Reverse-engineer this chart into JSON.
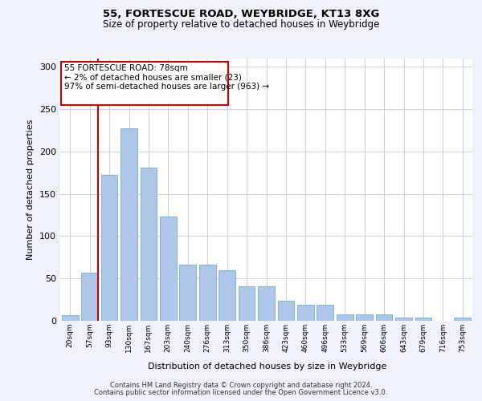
{
  "title1": "55, FORTESCUE ROAD, WEYBRIDGE, KT13 8XG",
  "title2": "Size of property relative to detached houses in Weybridge",
  "xlabel": "Distribution of detached houses by size in Weybridge",
  "ylabel": "Number of detached properties",
  "categories": [
    "20sqm",
    "57sqm",
    "93sqm",
    "130sqm",
    "167sqm",
    "203sqm",
    "240sqm",
    "276sqm",
    "313sqm",
    "350sqm",
    "386sqm",
    "423sqm",
    "460sqm",
    "496sqm",
    "533sqm",
    "569sqm",
    "606sqm",
    "643sqm",
    "679sqm",
    "716sqm",
    "753sqm"
  ],
  "bar_heights": [
    7,
    57,
    172,
    227,
    181,
    123,
    66,
    66,
    60,
    41,
    41,
    24,
    19,
    19,
    8,
    8,
    8,
    4,
    4,
    0,
    4
  ],
  "bar_color": "#aec6e8",
  "bar_edge_color": "#6baed6",
  "vline_x_idx": 1,
  "vline_color": "#cc0000",
  "annotation_line1": "55 FORTESCUE ROAD: 78sqm",
  "annotation_line2": "← 2% of detached houses are smaller (23)",
  "annotation_line3": "97% of semi-detached houses are larger (963) →",
  "annotation_box_color": "#ffffff",
  "annotation_box_edge": "#cc0000",
  "ylim": [
    0,
    310
  ],
  "yticks": [
    0,
    50,
    100,
    150,
    200,
    250,
    300
  ],
  "footer1": "Contains HM Land Registry data © Crown copyright and database right 2024.",
  "footer2": "Contains public sector information licensed under the Open Government Licence v3.0.",
  "bg_color": "#eef2fa",
  "plot_bg_color": "#ffffff",
  "grid_color": "#c8d0e0"
}
